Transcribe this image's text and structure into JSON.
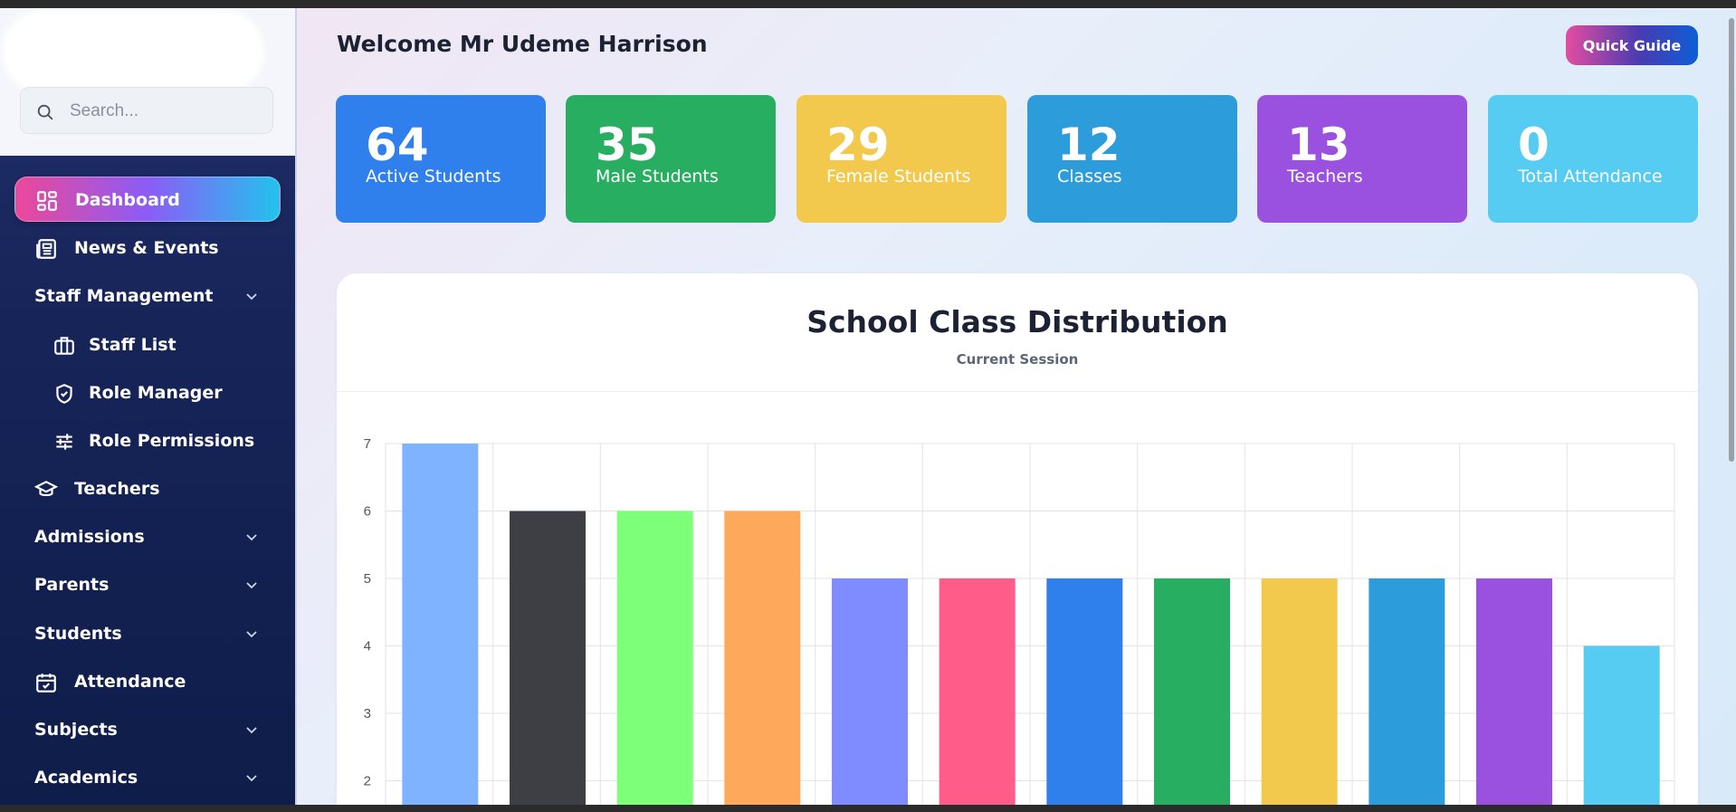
{
  "sidebar": {
    "search_placeholder": "Search...",
    "items": [
      {
        "label": "Dashboard",
        "icon": "dashboard-grid-icon",
        "active": true
      },
      {
        "label": "News & Events",
        "icon": "newspaper-icon"
      },
      {
        "label": "Staff Management",
        "icon": "",
        "expandable": true
      },
      {
        "label": "Staff List",
        "icon": "briefcase-icon"
      },
      {
        "label": "Role Manager",
        "icon": "shield-check-icon"
      },
      {
        "label": "Role Permissions",
        "icon": "sliders-icon"
      },
      {
        "label": "Teachers",
        "icon": "graduation-cap-icon"
      },
      {
        "label": "Admissions",
        "icon": "",
        "expandable": true
      },
      {
        "label": "Parents",
        "icon": "",
        "expandable": true
      },
      {
        "label": "Students",
        "icon": "",
        "expandable": true
      },
      {
        "label": "Attendance",
        "icon": "calendar-check-icon"
      },
      {
        "label": "Subjects",
        "icon": "",
        "expandable": true
      },
      {
        "label": "Academics",
        "icon": "",
        "expandable": true
      }
    ]
  },
  "header": {
    "welcome": "Welcome Mr Udeme Harrison",
    "quick_guide_label": "Quick Guide"
  },
  "stats": [
    {
      "value": "64",
      "label": "Active Students",
      "color": "#2f80ed"
    },
    {
      "value": "35",
      "label": "Male Students",
      "color": "#27ae60"
    },
    {
      "value": "29",
      "label": "Female Students",
      "color": "#f2c94c"
    },
    {
      "value": "12",
      "label": "Classes",
      "color": "#2d9cdb"
    },
    {
      "value": "13",
      "label": "Teachers",
      "color": "#9b51e0"
    },
    {
      "value": "0",
      "label": "Total Attendance",
      "color": "#56ccf2"
    }
  ],
  "chart": {
    "title": "School Class Distribution",
    "subtitle": "Current Session"
  },
  "chart_data": {
    "type": "bar",
    "title": "School Class Distribution",
    "subtitle": "Current Session",
    "values": [
      7,
      6,
      6,
      6,
      5,
      5,
      5,
      5,
      5,
      5,
      5,
      4
    ],
    "colors": [
      "#7fb2ff",
      "#3d3f45",
      "#7dff7a",
      "#fda85a",
      "#7f8cff",
      "#ff5c8a",
      "#2f80ed",
      "#27ae60",
      "#f2c94c",
      "#2d9cdb",
      "#9b51e0",
      "#56ccf2"
    ],
    "ylim": [
      2,
      7
    ],
    "yticks": [
      2,
      3,
      4,
      5,
      6,
      7
    ],
    "grid": true
  }
}
